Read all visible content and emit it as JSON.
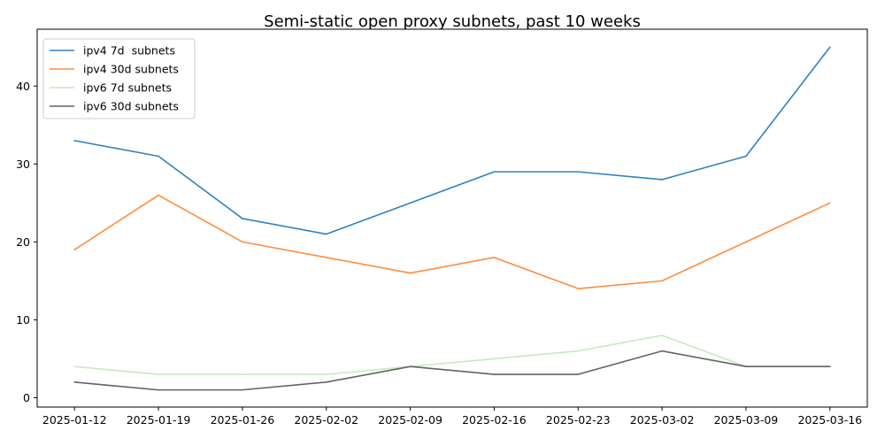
{
  "chart_data": {
    "type": "line",
    "title": "Semi-static open proxy subnets, past 10 weeks",
    "xlabel": "",
    "ylabel": "",
    "categories": [
      "2025-01-12",
      "2025-01-19",
      "2025-01-26",
      "2025-02-02",
      "2025-02-09",
      "2025-02-16",
      "2025-02-23",
      "2025-03-02",
      "2025-03-09",
      "2025-03-16"
    ],
    "ylim": [
      -1.2,
      47.3
    ],
    "yticks": [
      0,
      10,
      20,
      30,
      40
    ],
    "grid": false,
    "legend_position": "top-left",
    "series": [
      {
        "name": "ipv4 7d  subnets",
        "color": "#3182bd",
        "values": [
          33,
          31,
          23,
          21,
          25,
          29,
          29,
          28,
          31,
          45
        ]
      },
      {
        "name": "ipv4 30d subnets",
        "color": "#fd8d3c",
        "values": [
          19,
          26,
          20,
          18,
          16,
          18,
          14,
          15,
          20,
          25
        ]
      },
      {
        "name": "ipv6 7d subnets",
        "color": "#c7e9c0",
        "values": [
          4,
          3,
          3,
          3,
          4,
          5,
          6,
          8,
          4,
          4
        ]
      },
      {
        "name": "ipv6 30d subnets",
        "color": "#636363",
        "values": [
          2,
          1,
          1,
          2,
          4,
          3,
          3,
          6,
          4,
          4
        ]
      }
    ]
  }
}
